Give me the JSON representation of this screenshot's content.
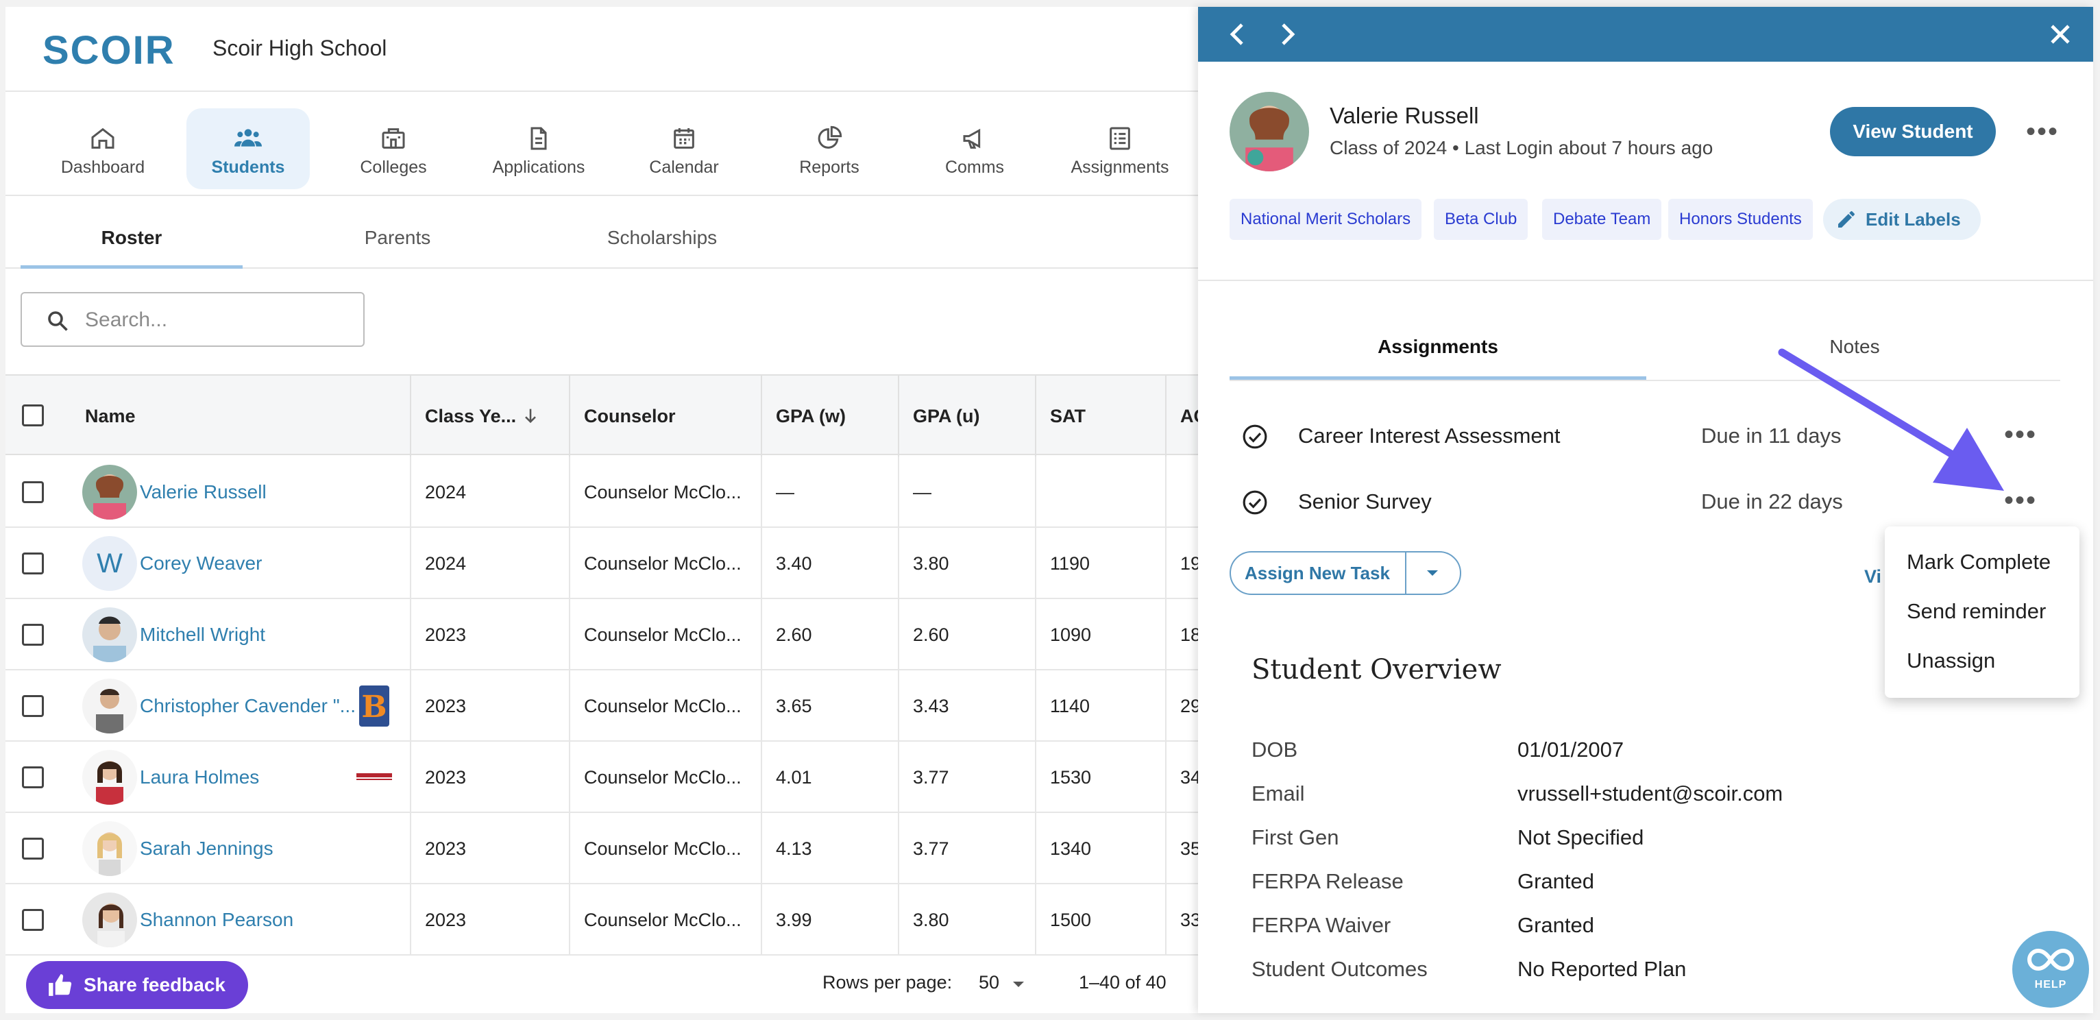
{
  "header": {
    "logo": "SCOIR",
    "school": "Scoir High School"
  },
  "nav": [
    {
      "label": "Dashboard",
      "icon": "home-icon"
    },
    {
      "label": "Students",
      "icon": "people-icon",
      "active": true
    },
    {
      "label": "Colleges",
      "icon": "college-icon"
    },
    {
      "label": "Applications",
      "icon": "document-icon"
    },
    {
      "label": "Calendar",
      "icon": "calendar-icon"
    },
    {
      "label": "Reports",
      "icon": "pie-chart-icon"
    },
    {
      "label": "Comms",
      "icon": "megaphone-icon"
    },
    {
      "label": "Assignments",
      "icon": "checklist-icon"
    }
  ],
  "subtabs": [
    "Roster",
    "Parents",
    "Scholarships"
  ],
  "search": {
    "placeholder": "Search..."
  },
  "table": {
    "columns": [
      "Name",
      "Class Ye...",
      "Counselor",
      "GPA (w)",
      "GPA (u)",
      "SAT",
      "AC"
    ],
    "rows": [
      {
        "name": "Valerie Russell",
        "avatar": "photo",
        "class": "2024",
        "counselor": "Counselor McClo...",
        "gpa_w": "—",
        "gpa_u": "—",
        "sat": "",
        "act": ""
      },
      {
        "name": "Corey Weaver",
        "avatar": "W",
        "class": "2024",
        "counselor": "Counselor McClo...",
        "gpa_w": "3.40",
        "gpa_u": "3.80",
        "sat": "1190",
        "act": "19"
      },
      {
        "name": "Mitchell Wright",
        "avatar": "photo",
        "class": "2023",
        "counselor": "Counselor McClo...",
        "gpa_w": "2.60",
        "gpa_u": "2.60",
        "sat": "1090",
        "act": "18"
      },
      {
        "name": "Christopher Cavender \"...",
        "avatar": "photo",
        "class": "2023",
        "counselor": "Counselor McClo...",
        "gpa_w": "3.65",
        "gpa_u": "3.43",
        "sat": "1140",
        "act": "29"
      },
      {
        "name": "Laura Holmes",
        "avatar": "photo",
        "class": "2023",
        "counselor": "Counselor McClo...",
        "gpa_w": "4.01",
        "gpa_u": "3.77",
        "sat": "1530",
        "act": "34"
      },
      {
        "name": "Sarah Jennings",
        "avatar": "photo",
        "class": "2023",
        "counselor": "Counselor McClo...",
        "gpa_w": "4.13",
        "gpa_u": "3.77",
        "sat": "1340",
        "act": "35"
      },
      {
        "name": "Shannon Pearson",
        "avatar": "photo",
        "class": "2023",
        "counselor": "Counselor McClo...",
        "gpa_w": "3.99",
        "gpa_u": "3.80",
        "sat": "1500",
        "act": "33"
      }
    ]
  },
  "footer": {
    "feedback": "Share feedback",
    "rows_per_page_label": "Rows per page:",
    "rows_per_page": "50",
    "range": "1–40 of 40"
  },
  "drawer": {
    "student_name": "Valerie Russell",
    "student_meta": "Class of 2024 • Last Login about 7 hours ago",
    "view_button": "View Student",
    "labels": [
      "National Merit Scholars",
      "Beta Club",
      "Debate Team",
      "Honors Students"
    ],
    "edit_labels": "Edit Labels",
    "tabs": [
      "Assignments",
      "Notes"
    ],
    "assignments": [
      {
        "title": "Career Interest Assessment",
        "due": "Due in 11 days"
      },
      {
        "title": "Senior Survey",
        "due": "Due in 22 days"
      }
    ],
    "assign_new": "Assign New Task",
    "view_all": "Vi",
    "overview_title": "Student Overview",
    "overview": [
      {
        "key": "DOB",
        "value": "01/01/2007"
      },
      {
        "key": "Email",
        "value": "vrussell+student@scoir.com"
      },
      {
        "key": "First Gen",
        "value": "Not Specified"
      },
      {
        "key": "FERPA Release",
        "value": "Granted"
      },
      {
        "key": "FERPA Waiver",
        "value": "Granted"
      },
      {
        "key": "Student Outcomes",
        "value": "No Reported Plan"
      }
    ]
  },
  "menu": [
    "Mark Complete",
    "Send reminder",
    "Unassign"
  ],
  "help": "HELP",
  "colors": {
    "brand": "#2f77a6",
    "accent": "#6a3fd6",
    "annotation": "#6a5cf0"
  }
}
